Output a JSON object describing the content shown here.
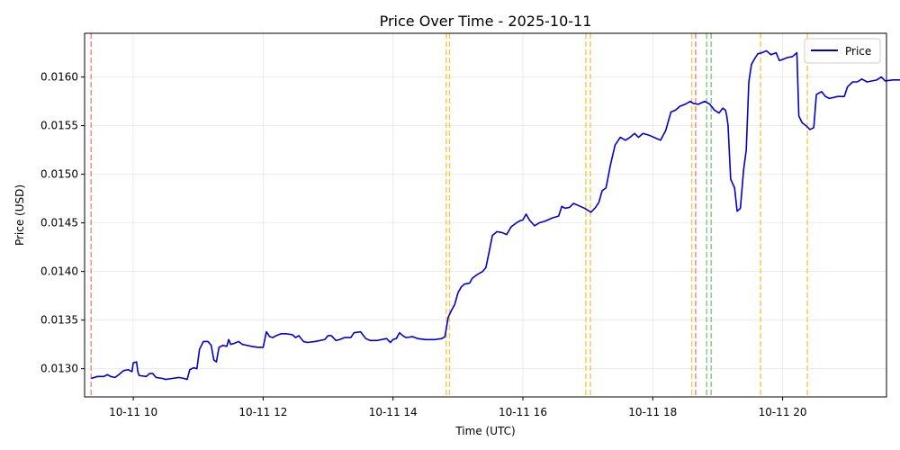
{
  "chart_data": {
    "type": "line",
    "title": "Price Over Time - 2025-10-11",
    "xlabel": "Time (UTC)",
    "ylabel": "Price (USD)",
    "xlim": [
      9.25,
      21.6
    ],
    "ylim": [
      0.01271,
      0.01645
    ],
    "grid": true,
    "legend_position": "top-right",
    "x_ticks": [
      {
        "value": 10,
        "label": "10-11 10"
      },
      {
        "value": 12,
        "label": "10-11 12"
      },
      {
        "value": 14,
        "label": "10-11 14"
      },
      {
        "value": 16,
        "label": "10-11 16"
      },
      {
        "value": 18,
        "label": "10-11 18"
      },
      {
        "value": 20,
        "label": "10-11 20"
      }
    ],
    "y_ticks": [
      {
        "value": 0.013,
        "label": "0.0130"
      },
      {
        "value": 0.0135,
        "label": "0.0135"
      },
      {
        "value": 0.014,
        "label": "0.0140"
      },
      {
        "value": 0.0145,
        "label": "0.0145"
      },
      {
        "value": 0.015,
        "label": "0.0150"
      },
      {
        "value": 0.0155,
        "label": "0.0155"
      },
      {
        "value": 0.016,
        "label": "0.0160"
      }
    ],
    "series": [
      {
        "name": "Price",
        "color": "#0000cd",
        "points": [
          [
            9.35,
            0.0129
          ],
          [
            9.45,
            0.01292
          ],
          [
            9.55,
            0.01292
          ],
          [
            9.6,
            0.01294
          ],
          [
            9.65,
            0.01292
          ],
          [
            9.72,
            0.01291
          ],
          [
            9.78,
            0.01294
          ],
          [
            9.85,
            0.01298
          ],
          [
            9.92,
            0.01299
          ],
          [
            9.98,
            0.01297
          ],
          [
            10.0,
            0.01306
          ],
          [
            10.05,
            0.01307
          ],
          [
            10.07,
            0.01297
          ],
          [
            10.09,
            0.01293
          ],
          [
            10.2,
            0.01292
          ],
          [
            10.25,
            0.01295
          ],
          [
            10.3,
            0.01295
          ],
          [
            10.35,
            0.01291
          ],
          [
            10.45,
            0.0129
          ],
          [
            10.5,
            0.01289
          ],
          [
            10.6,
            0.0129
          ],
          [
            10.7,
            0.01291
          ],
          [
            10.78,
            0.0129
          ],
          [
            10.83,
            0.01289
          ],
          [
            10.87,
            0.01299
          ],
          [
            10.93,
            0.01301
          ],
          [
            10.98,
            0.013
          ],
          [
            11.02,
            0.0132
          ],
          [
            11.08,
            0.01328
          ],
          [
            11.15,
            0.01328
          ],
          [
            11.2,
            0.01324
          ],
          [
            11.24,
            0.01309
          ],
          [
            11.28,
            0.01307
          ],
          [
            11.32,
            0.01322
          ],
          [
            11.38,
            0.01324
          ],
          [
            11.44,
            0.01323
          ],
          [
            11.47,
            0.0133
          ],
          [
            11.5,
            0.01325
          ],
          [
            11.55,
            0.01326
          ],
          [
            11.62,
            0.01328
          ],
          [
            11.68,
            0.01325
          ],
          [
            11.75,
            0.01324
          ],
          [
            11.82,
            0.01323
          ],
          [
            11.92,
            0.01322
          ],
          [
            12.0,
            0.01322
          ],
          [
            12.05,
            0.01338
          ],
          [
            12.1,
            0.01333
          ],
          [
            12.15,
            0.01332
          ],
          [
            12.2,
            0.01334
          ],
          [
            12.28,
            0.01336
          ],
          [
            12.35,
            0.01336
          ],
          [
            12.45,
            0.01335
          ],
          [
            12.5,
            0.01332
          ],
          [
            12.55,
            0.01334
          ],
          [
            12.62,
            0.01328
          ],
          [
            12.68,
            0.01327
          ],
          [
            12.8,
            0.01328
          ],
          [
            12.95,
            0.0133
          ],
          [
            13.0,
            0.01334
          ],
          [
            13.05,
            0.01334
          ],
          [
            13.12,
            0.01329
          ],
          [
            13.18,
            0.0133
          ],
          [
            13.25,
            0.01332
          ],
          [
            13.35,
            0.01332
          ],
          [
            13.4,
            0.01337
          ],
          [
            13.5,
            0.01338
          ],
          [
            13.58,
            0.01331
          ],
          [
            13.65,
            0.01329
          ],
          [
            13.75,
            0.01329
          ],
          [
            13.9,
            0.01331
          ],
          [
            13.96,
            0.01327
          ],
          [
            14.0,
            0.0133
          ],
          [
            14.05,
            0.01331
          ],
          [
            14.1,
            0.01337
          ],
          [
            14.15,
            0.01334
          ],
          [
            14.2,
            0.01332
          ],
          [
            14.3,
            0.01333
          ],
          [
            14.38,
            0.01331
          ],
          [
            14.5,
            0.0133
          ],
          [
            14.65,
            0.0133
          ],
          [
            14.75,
            0.01331
          ],
          [
            14.8,
            0.01333
          ],
          [
            14.85,
            0.01353
          ],
          [
            14.9,
            0.0136
          ],
          [
            14.95,
            0.01366
          ],
          [
            15.0,
            0.01378
          ],
          [
            15.05,
            0.01384
          ],
          [
            15.1,
            0.01387
          ],
          [
            15.18,
            0.01388
          ],
          [
            15.22,
            0.01393
          ],
          [
            15.3,
            0.01397
          ],
          [
            15.38,
            0.014
          ],
          [
            15.43,
            0.01404
          ],
          [
            15.48,
            0.0142
          ],
          [
            15.53,
            0.01437
          ],
          [
            15.6,
            0.01441
          ],
          [
            15.68,
            0.0144
          ],
          [
            15.75,
            0.01438
          ],
          [
            15.82,
            0.01446
          ],
          [
            15.9,
            0.0145
          ],
          [
            15.95,
            0.01452
          ],
          [
            16.0,
            0.01453
          ],
          [
            16.05,
            0.01459
          ],
          [
            16.1,
            0.01453
          ],
          [
            16.18,
            0.01447
          ],
          [
            16.25,
            0.0145
          ],
          [
            16.35,
            0.01452
          ],
          [
            16.45,
            0.01455
          ],
          [
            16.55,
            0.01457
          ],
          [
            16.6,
            0.01467
          ],
          [
            16.65,
            0.01465
          ],
          [
            16.72,
            0.01466
          ],
          [
            16.78,
            0.0147
          ],
          [
            16.85,
            0.01468
          ],
          [
            16.95,
            0.01465
          ],
          [
            17.05,
            0.01461
          ],
          [
            17.12,
            0.01466
          ],
          [
            17.17,
            0.01471
          ],
          [
            17.22,
            0.01483
          ],
          [
            17.28,
            0.01486
          ],
          [
            17.35,
            0.0151
          ],
          [
            17.42,
            0.0153
          ],
          [
            17.5,
            0.01538
          ],
          [
            17.58,
            0.01535
          ],
          [
            17.65,
            0.01538
          ],
          [
            17.72,
            0.01542
          ],
          [
            17.78,
            0.01538
          ],
          [
            17.85,
            0.01542
          ],
          [
            17.95,
            0.0154
          ],
          [
            18.05,
            0.01537
          ],
          [
            18.12,
            0.01535
          ],
          [
            18.2,
            0.01545
          ],
          [
            18.28,
            0.01564
          ],
          [
            18.35,
            0.01566
          ],
          [
            18.42,
            0.0157
          ],
          [
            18.5,
            0.01572
          ],
          [
            18.58,
            0.01575
          ],
          [
            18.62,
            0.01573
          ],
          [
            18.7,
            0.01572
          ],
          [
            18.8,
            0.01575
          ],
          [
            18.88,
            0.01572
          ],
          [
            18.95,
            0.01566
          ],
          [
            19.02,
            0.01563
          ],
          [
            19.08,
            0.01568
          ],
          [
            19.12,
            0.01566
          ],
          [
            19.14,
            0.0156
          ],
          [
            19.16,
            0.0155
          ],
          [
            19.2,
            0.01495
          ],
          [
            19.26,
            0.01486
          ],
          [
            19.3,
            0.01462
          ],
          [
            19.35,
            0.01465
          ],
          [
            19.4,
            0.01505
          ],
          [
            19.44,
            0.01525
          ],
          [
            19.48,
            0.01595
          ],
          [
            19.52,
            0.01613
          ],
          [
            19.57,
            0.01619
          ],
          [
            19.62,
            0.01624
          ],
          [
            19.68,
            0.01625
          ],
          [
            19.75,
            0.01627
          ],
          [
            19.82,
            0.01623
          ],
          [
            19.9,
            0.01625
          ],
          [
            19.95,
            0.01617
          ],
          [
            20.0,
            0.01618
          ],
          [
            20.07,
            0.0162
          ],
          [
            20.15,
            0.01621
          ],
          [
            20.22,
            0.01625
          ],
          [
            20.25,
            0.0156
          ],
          [
            20.3,
            0.01553
          ],
          [
            20.36,
            0.0155
          ],
          [
            20.42,
            0.01546
          ],
          [
            20.48,
            0.01548
          ],
          [
            20.52,
            0.01582
          ],
          [
            20.6,
            0.01585
          ],
          [
            20.66,
            0.0158
          ],
          [
            20.72,
            0.01578
          ],
          [
            20.85,
            0.0158
          ],
          [
            20.95,
            0.0158
          ],
          [
            21.0,
            0.0159
          ],
          [
            21.08,
            0.01595
          ],
          [
            21.15,
            0.01595
          ],
          [
            21.22,
            0.01598
          ],
          [
            21.3,
            0.01595
          ],
          [
            21.45,
            0.01597
          ],
          [
            21.52,
            0.016
          ],
          [
            21.58,
            0.01596
          ],
          [
            21.7,
            0.01597
          ],
          [
            21.85,
            0.01597
          ],
          [
            21.95,
            0.01598
          ]
        ]
      }
    ],
    "vlines": [
      {
        "x": 9.35,
        "color": "#f08080"
      },
      {
        "x": 14.82,
        "color": "#f5c542"
      },
      {
        "x": 14.87,
        "color": "#f5c542"
      },
      {
        "x": 16.97,
        "color": "#f5c542"
      },
      {
        "x": 17.04,
        "color": "#f5c542"
      },
      {
        "x": 18.6,
        "color": "#f5c542"
      },
      {
        "x": 18.66,
        "color": "#f08080"
      },
      {
        "x": 18.83,
        "color": "#7cc47c"
      },
      {
        "x": 18.9,
        "color": "#7cc47c"
      },
      {
        "x": 19.66,
        "color": "#f5c542"
      },
      {
        "x": 20.38,
        "color": "#f5c542"
      }
    ]
  }
}
